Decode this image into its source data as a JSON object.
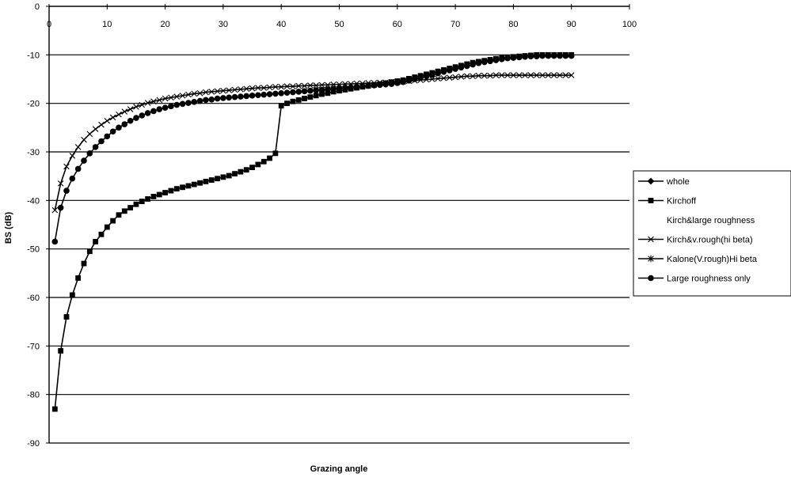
{
  "chart_data": {
    "type": "line",
    "title": "",
    "xlabel": "Grazing angle",
    "ylabel": "BS (dB)",
    "xlim": [
      0,
      100
    ],
    "ylim": [
      -90,
      0
    ],
    "x_ticks": [
      "0",
      "10",
      "20",
      "30",
      "40",
      "50",
      "60",
      "70",
      "80",
      "90",
      "100"
    ],
    "y_ticks": [
      "0",
      "-10",
      "-20",
      "-30",
      "-40",
      "-50",
      "-60",
      "-70",
      "-80",
      "-90"
    ],
    "x_tick_position": "top",
    "grid": "horizontal",
    "legend_position": "right",
    "legend": [
      "whole",
      "Kirchoff",
      "Kirch&large roughness",
      "Kirch&v.rough(hi beta)",
      "Kalone(V.rough)Hi beta",
      "Large roughness only"
    ],
    "series": [
      {
        "name": "Kirchoff",
        "marker": "square",
        "x": [
          1,
          2,
          3,
          4,
          5,
          6,
          7,
          8,
          9,
          10,
          11,
          12,
          13,
          14,
          15,
          16,
          17,
          18,
          19,
          20,
          21,
          22,
          23,
          24,
          25,
          26,
          27,
          28,
          29,
          30,
          31,
          32,
          33,
          34,
          35,
          36,
          37,
          38,
          39,
          40,
          41,
          42,
          43,
          44,
          45,
          46,
          47,
          48,
          49,
          50,
          51,
          52,
          53,
          54,
          55,
          56,
          57,
          58,
          59,
          60,
          61,
          62,
          63,
          64,
          65,
          66,
          67,
          68,
          69,
          70,
          71,
          72,
          73,
          74,
          75,
          76,
          77,
          78,
          79,
          80,
          81,
          82,
          83,
          84,
          85,
          86,
          87,
          88,
          89,
          90
        ],
        "y": [
          -83,
          -71,
          -64,
          -59.5,
          -56,
          -53,
          -50.5,
          -48.5,
          -47,
          -45.5,
          -44.2,
          -43,
          -42.2,
          -41.5,
          -40.8,
          -40.2,
          -39.7,
          -39.2,
          -38.8,
          -38.4,
          -38,
          -37.6,
          -37.3,
          -37,
          -36.7,
          -36.4,
          -36.1,
          -35.8,
          -35.5,
          -35.2,
          -34.9,
          -34.5,
          -34.1,
          -33.7,
          -33.2,
          -32.6,
          -32,
          -31.3,
          -30.3,
          -20.5,
          -20,
          -19.6,
          -19.3,
          -19,
          -18.7,
          -18.4,
          -18.1,
          -17.9,
          -17.6,
          -17.4,
          -17.2,
          -17,
          -16.8,
          -16.6,
          -16.4,
          -16.2,
          -16,
          -15.8,
          -15.6,
          -15.4,
          -15.2,
          -14.9,
          -14.6,
          -14.3,
          -14,
          -13.7,
          -13.4,
          -13.1,
          -12.8,
          -12.5,
          -12.2,
          -11.9,
          -11.6,
          -11.4,
          -11.2,
          -11,
          -10.8,
          -10.6,
          -10.5,
          -10.4,
          -10.3,
          -10.2,
          -10.1,
          -10,
          -10,
          -10,
          -10,
          -10,
          -10,
          -10
        ]
      },
      {
        "name": "Kirch&v.rough(hi beta)",
        "marker": "x",
        "x": [
          1,
          2,
          3,
          4,
          5,
          6,
          7,
          8,
          9,
          10,
          11,
          12,
          13,
          14,
          15,
          16,
          17,
          18,
          19,
          20,
          21,
          22,
          23,
          24,
          25,
          26,
          27,
          28,
          29,
          30,
          31,
          32,
          33,
          34,
          35,
          36,
          37,
          38,
          39,
          40,
          41,
          42,
          43,
          44,
          45,
          46,
          47,
          48,
          49,
          50,
          51,
          52,
          53,
          54,
          55,
          56,
          57,
          58,
          59,
          60,
          61,
          62,
          63,
          64,
          65,
          66,
          67,
          68,
          69,
          70,
          71,
          72,
          73,
          74,
          75,
          76,
          77,
          78,
          79,
          80,
          81,
          82,
          83,
          84,
          85,
          86,
          87,
          88,
          89,
          90
        ],
        "y": [
          -42,
          -36.5,
          -33,
          -30.8,
          -29,
          -27.5,
          -26.3,
          -25.3,
          -24.4,
          -23.6,
          -22.9,
          -22.3,
          -21.7,
          -21.2,
          -20.7,
          -20.3,
          -19.9,
          -19.6,
          -19.3,
          -19,
          -18.8,
          -18.6,
          -18.4,
          -18.2,
          -18,
          -17.9,
          -17.7,
          -17.6,
          -17.5,
          -17.4,
          -17.3,
          -17.2,
          -17.1,
          -17,
          -16.9,
          -16.8,
          -16.8,
          -16.7,
          -16.6,
          -16.6,
          -16.5,
          -16.5,
          -16.4,
          -16.4,
          -16.3,
          -16.3,
          -16.2,
          -16.2,
          -16.1,
          -16.1,
          -16,
          -16,
          -15.9,
          -15.9,
          -15.8,
          -15.8,
          -15.7,
          -15.7,
          -15.6,
          -15.6,
          -15.5,
          -15.4,
          -15.3,
          -15.2,
          -15.1,
          -15,
          -14.9,
          -14.8,
          -14.7,
          -14.6,
          -14.5,
          -14.4,
          -14.4,
          -14.3,
          -14.3,
          -14.3,
          -14.2,
          -14.2,
          -14.2,
          -14.2,
          -14.2,
          -14.2,
          -14.2,
          -14.2,
          -14.2,
          -14.2,
          -14.2,
          -14.2,
          -14.2,
          -14.2
        ]
      },
      {
        "name": "Large roughness only",
        "marker": "circle",
        "x": [
          1,
          2,
          3,
          4,
          5,
          6,
          7,
          8,
          9,
          10,
          11,
          12,
          13,
          14,
          15,
          16,
          17,
          18,
          19,
          20,
          21,
          22,
          23,
          24,
          25,
          26,
          27,
          28,
          29,
          30,
          31,
          32,
          33,
          34,
          35,
          36,
          37,
          38,
          39,
          40,
          41,
          42,
          43,
          44,
          45,
          46,
          47,
          48,
          49,
          50,
          51,
          52,
          53,
          54,
          55,
          56,
          57,
          58,
          59,
          60,
          61,
          62,
          63,
          64,
          65,
          66,
          67,
          68,
          69,
          70,
          71,
          72,
          73,
          74,
          75,
          76,
          77,
          78,
          79,
          80,
          81,
          82,
          83,
          84,
          85,
          86,
          87,
          88,
          89,
          90
        ],
        "y": [
          -48.5,
          -41.5,
          -38,
          -35.5,
          -33.5,
          -31.8,
          -30.3,
          -29,
          -27.8,
          -26.8,
          -25.8,
          -25,
          -24.3,
          -23.6,
          -23,
          -22.5,
          -22,
          -21.6,
          -21.2,
          -20.9,
          -20.6,
          -20.3,
          -20.1,
          -19.9,
          -19.7,
          -19.5,
          -19.3,
          -19.2,
          -19,
          -18.9,
          -18.8,
          -18.7,
          -18.6,
          -18.5,
          -18.4,
          -18.3,
          -18.2,
          -18.1,
          -18,
          -17.9,
          -17.8,
          -17.7,
          -17.6,
          -17.5,
          -17.4,
          -17.3,
          -17.2,
          -17.1,
          -17,
          -16.9,
          -16.8,
          -16.7,
          -16.6,
          -16.5,
          -16.4,
          -16.3,
          -16.2,
          -16.1,
          -16,
          -15.8,
          -15.6,
          -15.3,
          -15,
          -14.7,
          -14.4,
          -14.1,
          -13.8,
          -13.5,
          -13.2,
          -12.9,
          -12.6,
          -12.3,
          -12,
          -11.7,
          -11.5,
          -11.3,
          -11.1,
          -10.9,
          -10.7,
          -10.6,
          -10.5,
          -10.4,
          -10.3,
          -10.3,
          -10.2,
          -10.2,
          -10.2,
          -10.2,
          -10.2,
          -10.2
        ]
      }
    ]
  }
}
